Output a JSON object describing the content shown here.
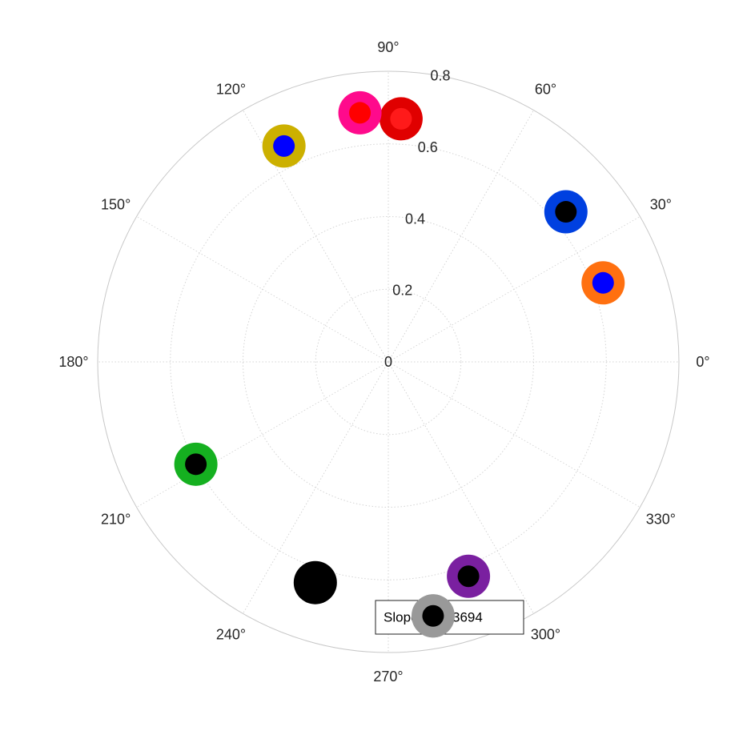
{
  "chart_data": {
    "type": "scatter",
    "coordinate_system": "polar",
    "angle_unit": "degrees",
    "rlim": [
      0,
      0.8
    ],
    "radial_ticks": [
      "0",
      "0.2",
      "0.4",
      "0.6",
      "0.8"
    ],
    "radial_tick_values": [
      0,
      0.2,
      0.4,
      0.6,
      0.8
    ],
    "angle_ticks": [
      "0°",
      "30°",
      "60°",
      "90°",
      "120°",
      "150°",
      "180°",
      "210°",
      "240°",
      "270°",
      "300°",
      "330°"
    ],
    "angle_tick_values": [
      0,
      30,
      60,
      90,
      120,
      150,
      180,
      210,
      240,
      270,
      300,
      330
    ],
    "grid": true,
    "points": [
      {
        "theta": 87.0,
        "r": 0.67,
        "outer_color": "#e00000",
        "inner_color": "#ff1a1a"
      },
      {
        "theta": 96.5,
        "r": 0.69,
        "outer_color": "#ff0a8c",
        "inner_color": "#ff0000"
      },
      {
        "theta": 115.8,
        "r": 0.66,
        "outer_color": "#ccb000",
        "inner_color": "#0000ff"
      },
      {
        "theta": 40.2,
        "r": 0.64,
        "outer_color": "#0040e0",
        "inner_color": "#000000"
      },
      {
        "theta": 20.2,
        "r": 0.63,
        "outer_color": "#ff7010",
        "inner_color": "#0000ff"
      },
      {
        "theta": 208.0,
        "r": 0.6,
        "outer_color": "#15b020",
        "inner_color": "#000000"
      },
      {
        "theta": 251.7,
        "r": 0.64,
        "outer_color": "#000000",
        "inner_color": "#000000"
      },
      {
        "theta": 290.5,
        "r": 0.63,
        "outer_color": "#7a20a0",
        "inner_color": "#000000"
      },
      {
        "theta": 280.0,
        "r": 0.71,
        "outer_color": "#999999",
        "inner_color": "#000000"
      }
    ],
    "annotation": {
      "text": "Slope: 0.013694"
    }
  }
}
